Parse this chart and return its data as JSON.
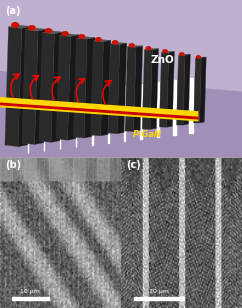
{
  "figure_width": 2.42,
  "figure_height": 3.08,
  "dpi": 100,
  "panel_a": {
    "label": "(a)",
    "bg_color": "#c0b0d0",
    "floor_color": "#a898b8",
    "fin_face_color": "#2a2a2a",
    "fin_top_color": "#585858",
    "fin_side_color": "#181818",
    "gap_color": "#ffffff",
    "gold_color": "#FFD700",
    "red_color": "#CC0000",
    "zno_label": "ZnO",
    "pgan_label": "P-GaN",
    "dot_color": "#cc1100"
  },
  "panel_b": {
    "label": "(b)",
    "scale_bar_text": "10 μm"
  },
  "panel_c": {
    "label": "(c)",
    "scale_bar_text": "20 μm"
  }
}
